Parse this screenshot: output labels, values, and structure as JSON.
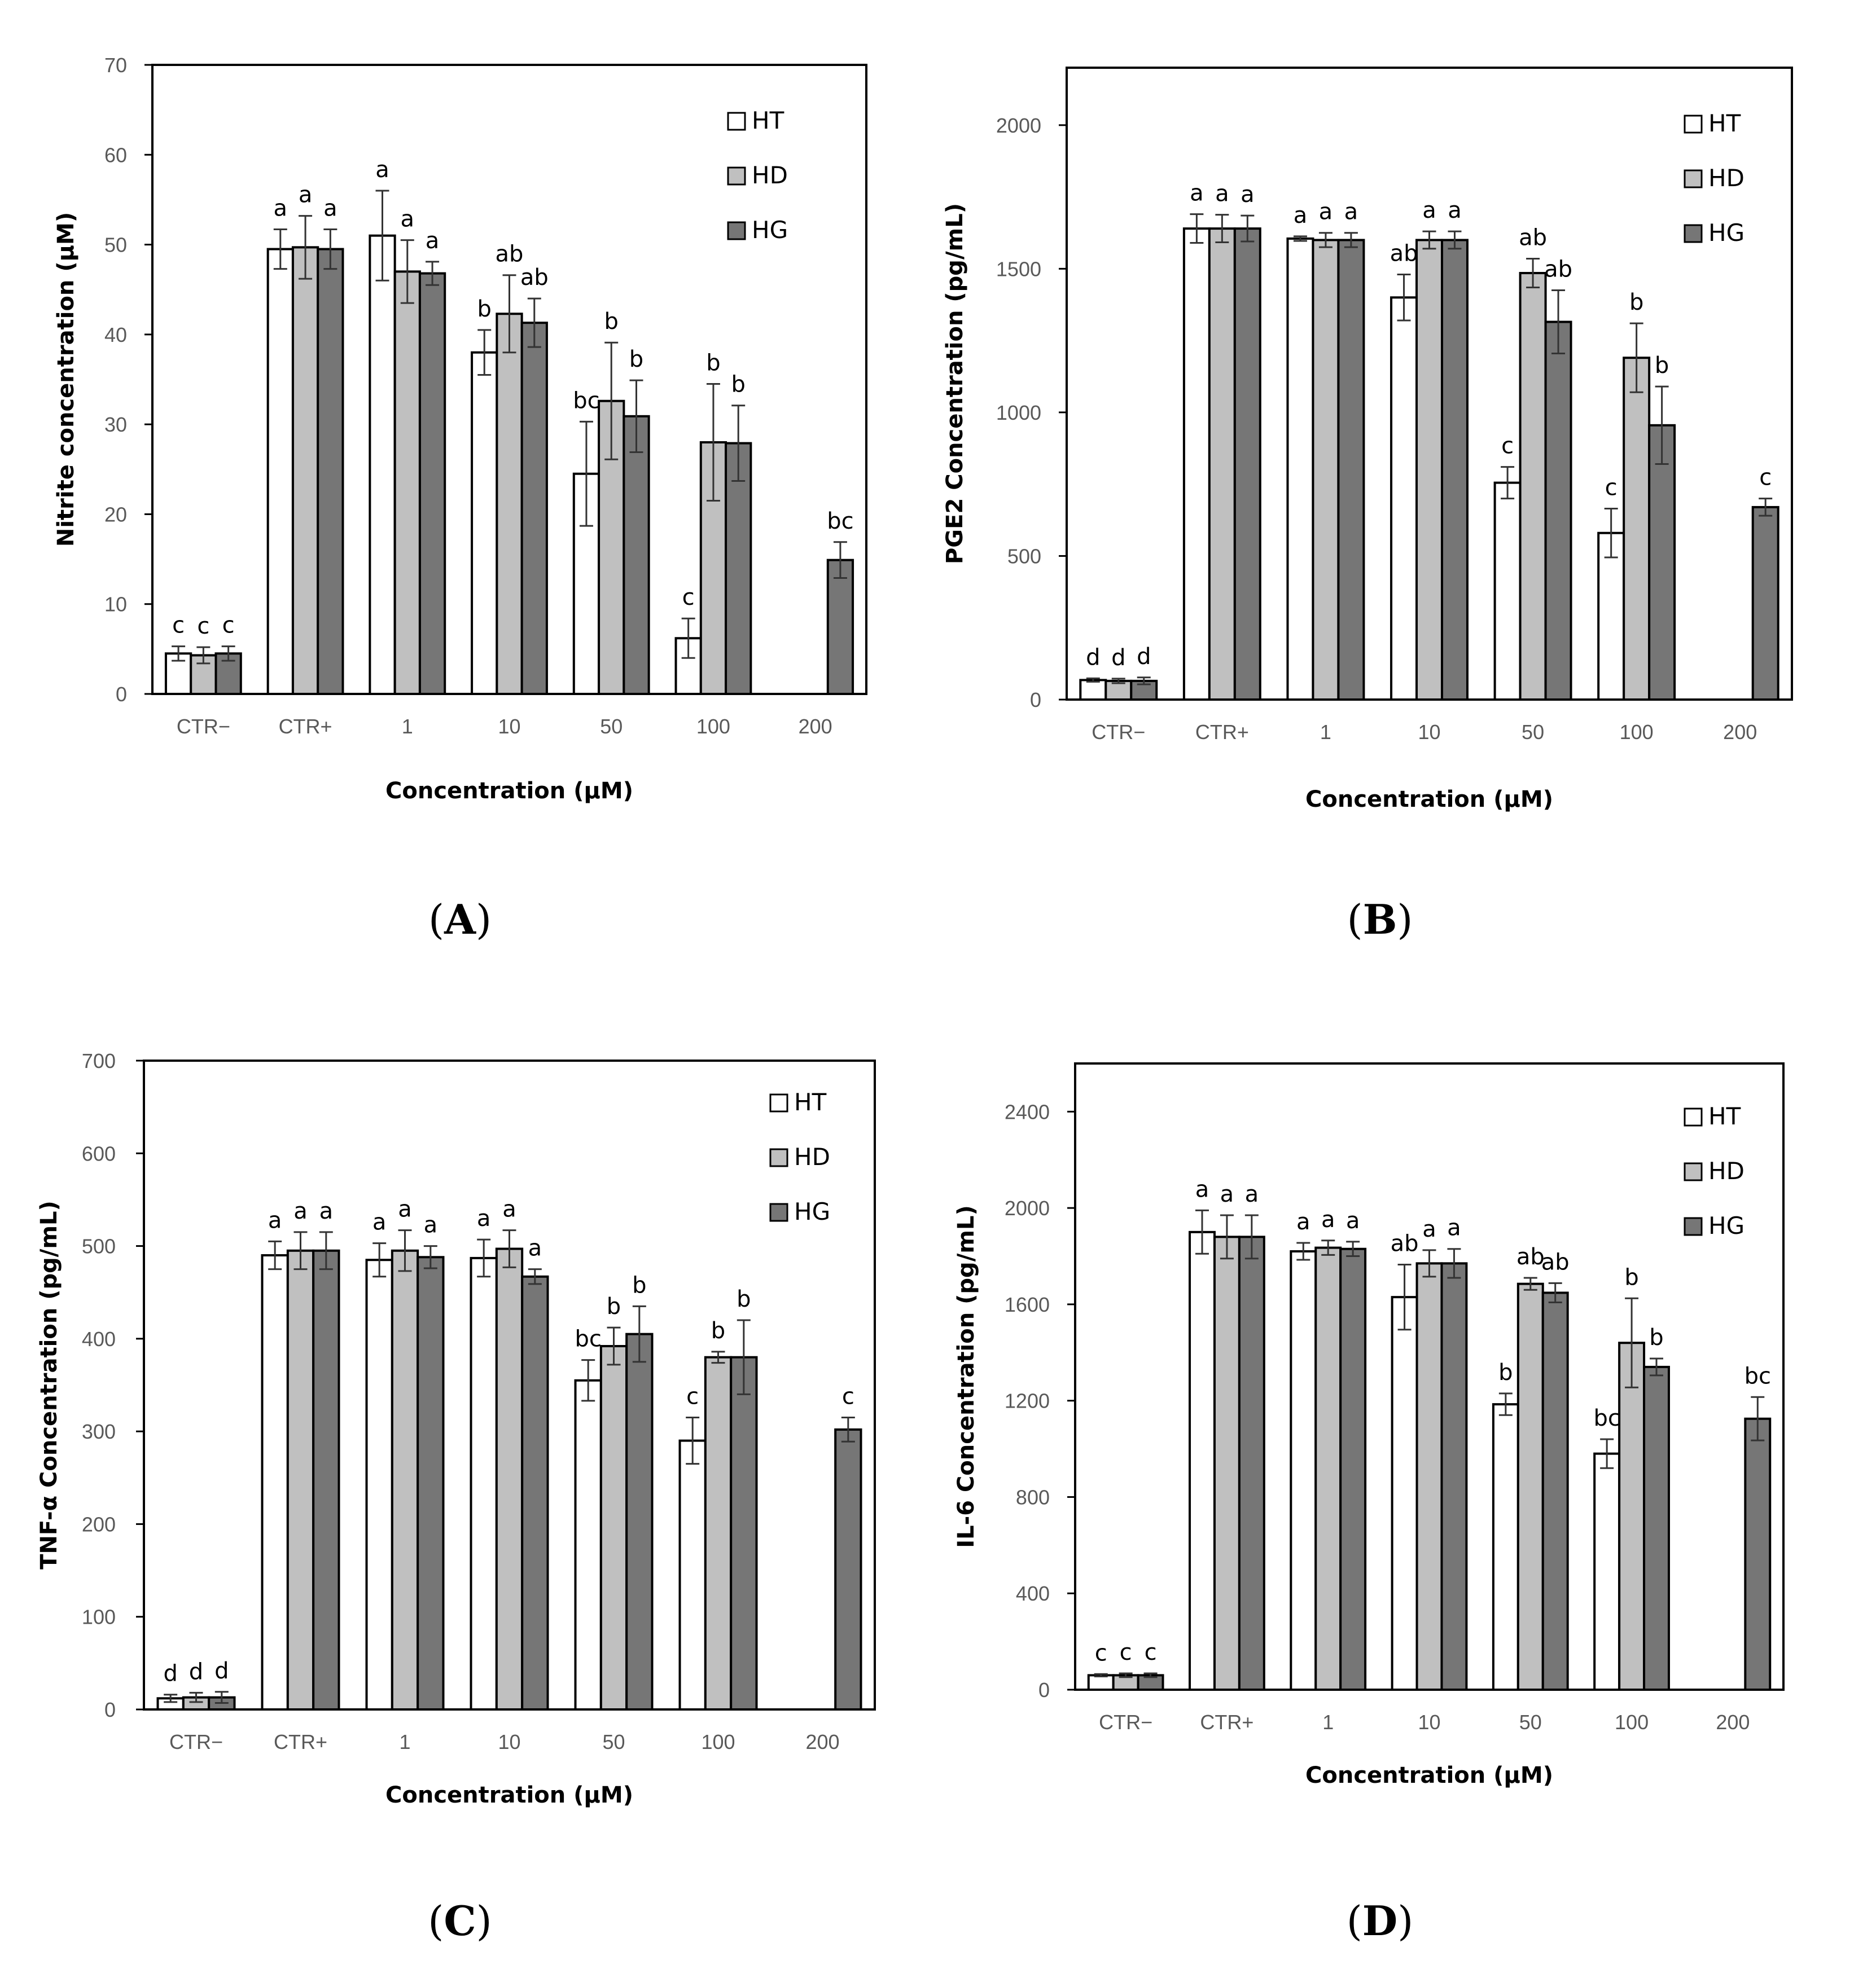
{
  "chart_data": [
    {
      "panel": "A",
      "type": "bar",
      "title": "",
      "xlabel": "Concentration (µM)",
      "ylabel": "Nitrite concentration (µM)",
      "ylim": [
        0,
        70
      ],
      "yticks": [
        0,
        10,
        20,
        30,
        40,
        50,
        60,
        70
      ],
      "categories": [
        "CTR−",
        "CTR+",
        "1",
        "10",
        "50",
        "100",
        "200"
      ],
      "series": [
        {
          "name": "HT",
          "values": [
            4.5,
            49.5,
            51,
            38,
            24.5,
            6.2,
            null
          ],
          "errors": [
            0.8,
            2.2,
            5.0,
            2.5,
            5.8,
            2.2,
            null
          ],
          "letters": [
            "c",
            "a",
            "a",
            "b",
            "bc",
            "c",
            null
          ]
        },
        {
          "name": "HD",
          "values": [
            4.3,
            49.7,
            47,
            42.3,
            32.6,
            28,
            null
          ],
          "errors": [
            0.9,
            3.5,
            3.5,
            4.3,
            6.5,
            6.5,
            null
          ],
          "letters": [
            "c",
            "a",
            "a",
            "ab",
            "b",
            "b",
            null
          ]
        },
        {
          "name": "HG",
          "values": [
            4.5,
            49.5,
            46.8,
            41.3,
            30.9,
            27.9,
            14.9
          ],
          "errors": [
            0.8,
            2.2,
            1.3,
            2.7,
            4.0,
            4.2,
            2.0
          ],
          "letters": [
            "c",
            "a",
            "a",
            "ab",
            "b",
            "b",
            "bc"
          ]
        }
      ]
    },
    {
      "panel": "B",
      "type": "bar",
      "title": "",
      "xlabel": "Concentration (µM)",
      "ylabel": "PGE2 Concentration (pg/mL)",
      "ylim": [
        0,
        2200
      ],
      "yticks": [
        0,
        500,
        1000,
        1500,
        2000
      ],
      "categories": [
        "CTR−",
        "CTR+",
        "1",
        "10",
        "50",
        "100",
        "200"
      ],
      "series": [
        {
          "name": "HT",
          "values": [
            68,
            1640,
            1605,
            1400,
            755,
            580,
            null
          ],
          "errors": [
            6,
            50,
            8,
            80,
            55,
            85,
            null
          ],
          "letters": [
            "d",
            "a",
            "a",
            "ab",
            "c",
            "c",
            null
          ]
        },
        {
          "name": "HD",
          "values": [
            65,
            1640,
            1600,
            1600,
            1485,
            1190,
            null
          ],
          "errors": [
            8,
            48,
            25,
            30,
            50,
            120,
            null
          ],
          "letters": [
            "d",
            "a",
            "a",
            "a",
            "ab",
            "b",
            null
          ]
        },
        {
          "name": "HG",
          "values": [
            65,
            1640,
            1600,
            1600,
            1315,
            955,
            670
          ],
          "errors": [
            12,
            45,
            25,
            30,
            110,
            135,
            30
          ],
          "letters": [
            "d",
            "a",
            "a",
            "a",
            "ab",
            "b",
            "c"
          ]
        }
      ]
    },
    {
      "panel": "C",
      "type": "bar",
      "title": "",
      "xlabel": "Concentration (µM)",
      "ylabel": "TNF-α Concentration (pg/mL)",
      "ylim": [
        0,
        700
      ],
      "yticks": [
        0,
        100,
        200,
        300,
        400,
        500,
        600,
        700
      ],
      "categories": [
        "CTR−",
        "CTR+",
        "1",
        "10",
        "50",
        "100",
        "200"
      ],
      "series": [
        {
          "name": "HT",
          "values": [
            12,
            490,
            485,
            487,
            355,
            290,
            null
          ],
          "errors": [
            4,
            15,
            18,
            20,
            22,
            25,
            null
          ],
          "letters": [
            "d",
            "a",
            "a",
            "a",
            "bc",
            "c",
            null
          ]
        },
        {
          "name": "HD",
          "values": [
            13,
            495,
            495,
            497,
            392,
            380,
            null
          ],
          "errors": [
            5,
            20,
            22,
            20,
            20,
            6,
            null
          ],
          "letters": [
            "d",
            "a",
            "a",
            "a",
            "b",
            "b",
            null
          ]
        },
        {
          "name": "HG",
          "values": [
            13,
            495,
            488,
            467,
            405,
            380,
            302
          ],
          "errors": [
            6,
            20,
            12,
            8,
            30,
            40,
            13
          ],
          "letters": [
            "d",
            "a",
            "a",
            "a",
            "b",
            "b",
            "c"
          ]
        }
      ]
    },
    {
      "panel": "D",
      "type": "bar",
      "title": "",
      "xlabel": "Concentration (µM)",
      "ylabel": "IL-6 Concentration (pg/mL)",
      "ylim": [
        0,
        2600
      ],
      "yticks": [
        0,
        400,
        800,
        1200,
        1600,
        2000,
        2400
      ],
      "categories": [
        "CTR−",
        "CTR+",
        "1",
        "10",
        "50",
        "100",
        "200"
      ],
      "series": [
        {
          "name": "HT",
          "values": [
            60,
            1900,
            1820,
            1630,
            1185,
            980,
            null
          ],
          "errors": [
            5,
            90,
            35,
            135,
            45,
            60,
            null
          ],
          "letters": [
            "c",
            "a",
            "a",
            "ab",
            "b",
            "bc",
            null
          ]
        },
        {
          "name": "HD",
          "values": [
            60,
            1880,
            1835,
            1770,
            1685,
            1440,
            null
          ],
          "errors": [
            8,
            90,
            30,
            55,
            25,
            185,
            null
          ],
          "letters": [
            "c",
            "a",
            "a",
            "a",
            "ab",
            "b",
            null
          ]
        },
        {
          "name": "HG",
          "values": [
            60,
            1880,
            1830,
            1770,
            1648,
            1340,
            1125
          ],
          "errors": [
            8,
            90,
            30,
            60,
            40,
            35,
            90
          ],
          "letters": [
            "c",
            "a",
            "a",
            "a",
            "ab",
            "b",
            "bc"
          ]
        }
      ]
    }
  ],
  "series_colors": {
    "HT": "#ffffff",
    "HD": "#c0c0c0",
    "HG": "#767676"
  },
  "panel_labels": [
    "(A)",
    "(B)",
    "(C)",
    "(D)"
  ],
  "panel_letters": [
    "A",
    "B",
    "C",
    "D"
  ]
}
